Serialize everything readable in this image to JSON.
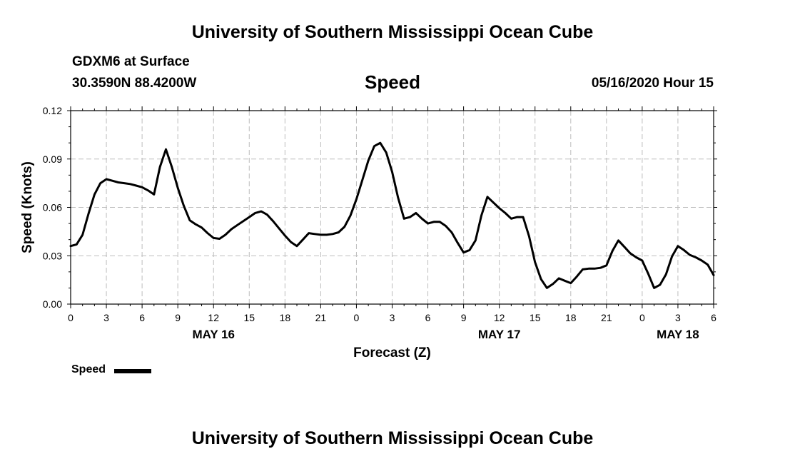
{
  "header": {
    "top_title": "University of Southern Mississippi Ocean Cube",
    "station": "GDXM6 at Surface",
    "coords": "30.3590N 88.4200W",
    "chart_title": "Speed",
    "datetime": "05/16/2020 Hour 15"
  },
  "footer": {
    "bottom_title": "University of Southern Mississippi Ocean Cube"
  },
  "legend": {
    "label": "Speed",
    "color": "#000000"
  },
  "chart_data": {
    "type": "line",
    "title": "Speed",
    "xlabel": "Forecast (Z)",
    "ylabel": "Speed (Knots)",
    "xlim": [
      0,
      54
    ],
    "ylim": [
      0,
      0.12
    ],
    "grid": true,
    "legend_position": "bottom-left",
    "y_ticks": [
      {
        "value": 0.0,
        "label": "0.00"
      },
      {
        "value": 0.03,
        "label": "0.03"
      },
      {
        "value": 0.06,
        "label": "0.06"
      },
      {
        "value": 0.09,
        "label": "0.09"
      },
      {
        "value": 0.12,
        "label": "0.12"
      }
    ],
    "x_ticks": [
      {
        "value": 0,
        "label": "0"
      },
      {
        "value": 3,
        "label": "3"
      },
      {
        "value": 6,
        "label": "6"
      },
      {
        "value": 9,
        "label": "9"
      },
      {
        "value": 12,
        "label": "12"
      },
      {
        "value": 15,
        "label": "15"
      },
      {
        "value": 18,
        "label": "18"
      },
      {
        "value": 21,
        "label": "21"
      },
      {
        "value": 24,
        "label": "0"
      },
      {
        "value": 27,
        "label": "3"
      },
      {
        "value": 30,
        "label": "6"
      },
      {
        "value": 33,
        "label": "9"
      },
      {
        "value": 36,
        "label": "12"
      },
      {
        "value": 39,
        "label": "15"
      },
      {
        "value": 42,
        "label": "18"
      },
      {
        "value": 45,
        "label": "21"
      },
      {
        "value": 48,
        "label": "0"
      },
      {
        "value": 51,
        "label": "3"
      },
      {
        "value": 54,
        "label": "6"
      }
    ],
    "date_labels": [
      {
        "value": 12,
        "label": "MAY 16"
      },
      {
        "value": 36,
        "label": "MAY 17"
      },
      {
        "value": 51,
        "label": "MAY 18"
      }
    ],
    "series": [
      {
        "name": "Speed",
        "color": "#000000",
        "x": [
          0,
          0.5,
          1,
          1.5,
          2,
          2.5,
          3,
          3.5,
          4,
          4.5,
          5,
          5.5,
          6,
          6.5,
          7,
          7.5,
          8,
          8.5,
          9,
          9.5,
          10,
          10.5,
          11,
          11.5,
          12,
          12.5,
          13,
          13.5,
          14,
          14.5,
          15,
          15.5,
          16,
          16.5,
          17,
          17.5,
          18,
          18.5,
          19,
          19.5,
          20,
          20.5,
          21,
          21.5,
          22,
          22.5,
          23,
          23.5,
          24,
          24.5,
          25,
          25.5,
          26,
          26.5,
          27,
          27.5,
          28,
          28.5,
          29,
          29.5,
          30,
          30.5,
          31,
          31.5,
          32,
          32.5,
          33,
          33.5,
          34,
          34.5,
          35,
          35.5,
          36,
          36.5,
          37,
          37.5,
          38,
          38.5,
          39,
          39.5,
          40,
          40.5,
          41,
          41.5,
          42,
          42.5,
          43,
          43.5,
          44,
          44.5,
          45,
          45.5,
          46,
          46.5,
          47,
          47.5,
          48,
          48.5,
          49,
          49.5,
          50,
          50.5,
          51,
          51.5,
          52,
          52.5,
          53,
          53.5,
          54
        ],
        "values": [
          0.036,
          0.037,
          0.043,
          0.056,
          0.068,
          0.075,
          0.0775,
          0.0765,
          0.0755,
          0.075,
          0.0745,
          0.0735,
          0.0725,
          0.0705,
          0.068,
          0.085,
          0.096,
          0.085,
          0.072,
          0.061,
          0.052,
          0.0495,
          0.0475,
          0.044,
          0.041,
          0.0405,
          0.043,
          0.0465,
          0.049,
          0.0515,
          0.054,
          0.0565,
          0.0575,
          0.0555,
          0.0515,
          0.047,
          0.0425,
          0.0385,
          0.036,
          0.04,
          0.044,
          0.0435,
          0.043,
          0.043,
          0.0435,
          0.0445,
          0.048,
          0.055,
          0.065,
          0.077,
          0.089,
          0.098,
          0.1,
          0.094,
          0.082,
          0.066,
          0.053,
          0.054,
          0.0565,
          0.053,
          0.05,
          0.051,
          0.051,
          0.0485,
          0.0445,
          0.038,
          0.032,
          0.0335,
          0.0395,
          0.055,
          0.0665,
          0.063,
          0.0595,
          0.0565,
          0.053,
          0.054,
          0.054,
          0.042,
          0.026,
          0.0155,
          0.01,
          0.0125,
          0.016,
          0.0145,
          0.013,
          0.017,
          0.0215,
          0.022,
          0.022,
          0.0225,
          0.024,
          0.033,
          0.0395,
          0.0355,
          0.0315,
          0.029,
          0.027,
          0.019,
          0.01,
          0.012,
          0.0185,
          0.0295,
          0.036,
          0.0335,
          0.0305,
          0.029,
          0.027,
          0.0245,
          0.018
        ]
      }
    ]
  }
}
